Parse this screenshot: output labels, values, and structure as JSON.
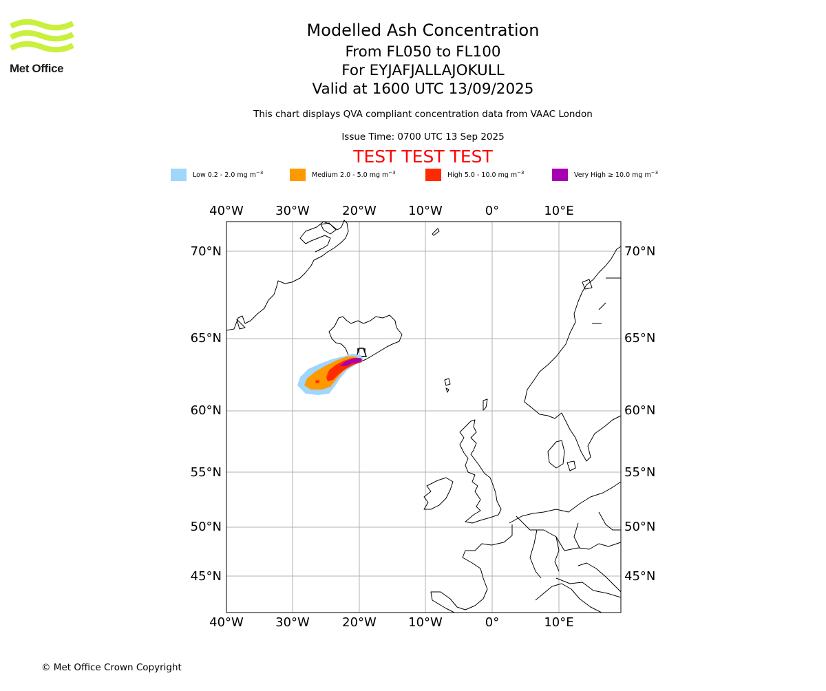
{
  "logo": {
    "text": "Met Office"
  },
  "header": {
    "title": "Modelled Ash Concentration",
    "levels": "From FL050 to FL100",
    "volcano": "For EYJAFJALLAJOKULL",
    "valid": "Valid at 1600 UTC 13/09/2025",
    "subtitle": "This chart displays QVA compliant concentration data from VAAC London",
    "issue_time": "Issue Time: 0700 UTC 13 Sep 2025",
    "test_banner": "TEST TEST TEST"
  },
  "legend": [
    {
      "label": "Low 0.2 - 2.0 mg m",
      "sup": "−3",
      "color": "#a0d6fc"
    },
    {
      "label": "Medium 2.0 - 5.0 mg m",
      "sup": "−3",
      "color": "#ff9900"
    },
    {
      "label": "High 5.0 - 10.0 mg m",
      "sup": "−3",
      "color": "#ff2b00"
    },
    {
      "label": "Very High  ≥  10.0 mg m",
      "sup": "−3",
      "color": "#a600b0"
    }
  ],
  "map": {
    "lon_ticks": [
      "40°W",
      "30°W",
      "20°W",
      "10°W",
      "0°",
      "10°E"
    ],
    "lat_ticks": [
      "70°N",
      "65°N",
      "60°N",
      "55°N",
      "50°N",
      "45°N"
    ],
    "gridlines": true,
    "volcano_marker": "volcano-symbol"
  },
  "footer": {
    "copyright": "© Met Office Crown Copyright"
  }
}
